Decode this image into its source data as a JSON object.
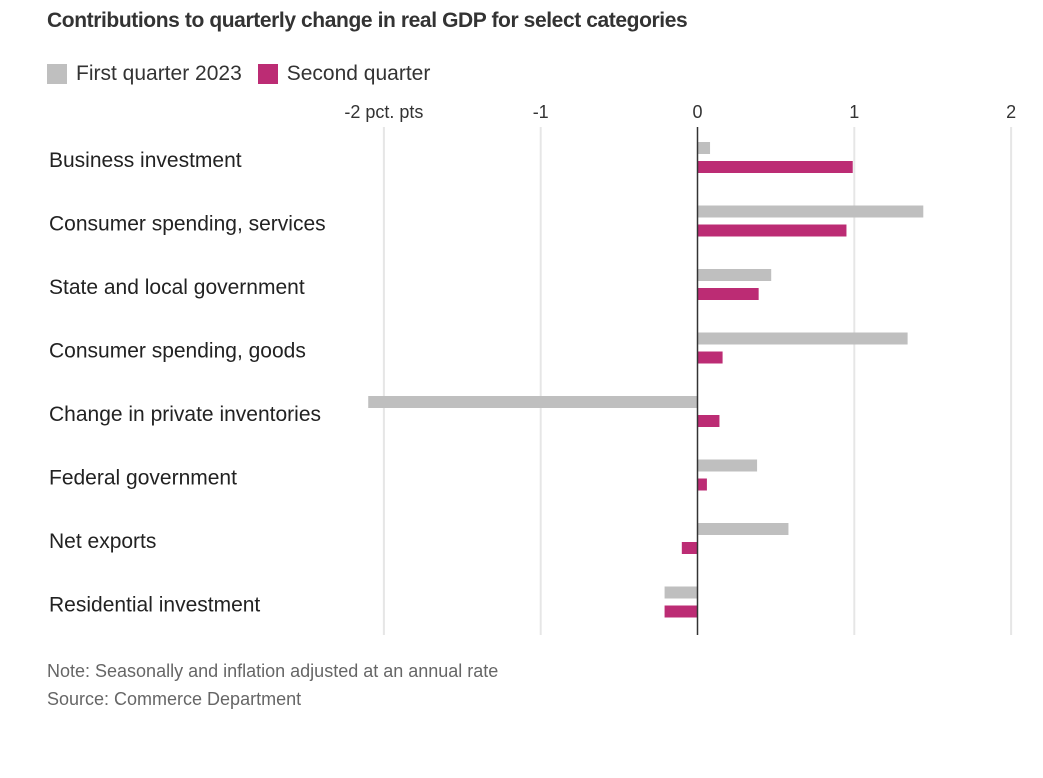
{
  "chart_data": {
    "type": "bar",
    "orientation": "horizontal",
    "title": "Contributions to quarterly change in real GDP for select categories",
    "xlabel": "",
    "ylabel": "",
    "unit_label": "pct. pts",
    "xlim": [
      -2,
      2
    ],
    "xticks": [
      -2,
      -1,
      0,
      1,
      2
    ],
    "xtick_labels": [
      "-2 pct. pts",
      "-1",
      "0",
      "1",
      "2"
    ],
    "grid": true,
    "legend_position": "top-left",
    "categories": [
      "Business investment",
      "Consumer spending, services",
      "State and local government",
      "Consumer spending, goods",
      "Change in private inventories",
      "Federal government",
      "Net exports",
      "Residential investment"
    ],
    "series": [
      {
        "name": "First quarter 2023",
        "color": "#bfbfbf",
        "values": [
          0.08,
          1.44,
          0.47,
          1.34,
          -2.1,
          0.38,
          0.58,
          -0.21
        ]
      },
      {
        "name": "Second quarter",
        "color": "#bc2c74",
        "values": [
          0.99,
          0.95,
          0.39,
          0.16,
          0.14,
          0.06,
          -0.1,
          -0.21
        ]
      }
    ],
    "note": "Note: Seasonally and inflation adjusted at an annual rate",
    "source": "Source: Commerce Department"
  }
}
